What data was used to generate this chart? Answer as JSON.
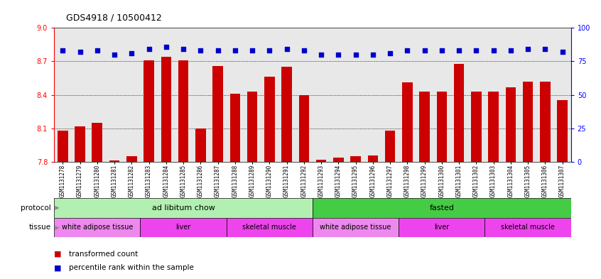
{
  "title": "GDS4918 / 10500412",
  "samples": [
    "GSM1131278",
    "GSM1131279",
    "GSM1131280",
    "GSM1131281",
    "GSM1131282",
    "GSM1131283",
    "GSM1131284",
    "GSM1131285",
    "GSM1131286",
    "GSM1131287",
    "GSM1131288",
    "GSM1131289",
    "GSM1131290",
    "GSM1131291",
    "GSM1131292",
    "GSM1131293",
    "GSM1131294",
    "GSM1131295",
    "GSM1131296",
    "GSM1131297",
    "GSM1131298",
    "GSM1131299",
    "GSM1131300",
    "GSM1131301",
    "GSM1131302",
    "GSM1131303",
    "GSM1131304",
    "GSM1131305",
    "GSM1131306",
    "GSM1131307"
  ],
  "bar_values": [
    8.08,
    8.12,
    8.15,
    7.81,
    7.85,
    8.71,
    8.74,
    8.71,
    8.1,
    8.66,
    8.41,
    8.43,
    8.56,
    8.65,
    8.4,
    7.82,
    7.84,
    7.85,
    7.86,
    8.08,
    8.51,
    8.43,
    8.43,
    8.68,
    8.43,
    8.43,
    8.47,
    8.52,
    8.52,
    8.35
  ],
  "percentile_values": [
    83,
    82,
    83,
    80,
    81,
    84,
    86,
    84,
    83,
    83,
    83,
    83,
    83,
    84,
    83,
    80,
    80,
    80,
    80,
    81,
    83,
    83,
    83,
    83,
    83,
    83,
    83,
    84,
    84,
    82
  ],
  "bar_color": "#cc0000",
  "dot_color": "#0000cc",
  "ylim_left": [
    7.8,
    9.0
  ],
  "ylim_right": [
    0,
    100
  ],
  "yticks_left": [
    7.8,
    8.1,
    8.4,
    8.7,
    9.0
  ],
  "yticks_right": [
    0,
    25,
    50,
    75,
    100
  ],
  "gridline_ticks": [
    8.1,
    8.4,
    8.7
  ],
  "plot_bg": "#e8e8e8",
  "fig_bg": "#ffffff",
  "protocol_groups": [
    {
      "label": "ad libitum chow",
      "start": 0,
      "end": 15,
      "color": "#b2f0b2"
    },
    {
      "label": "fasted",
      "start": 15,
      "end": 30,
      "color": "#44cc44"
    }
  ],
  "tissue_groups": [
    {
      "label": "white adipose tissue",
      "start": 0,
      "end": 5,
      "color": "#ee88ee"
    },
    {
      "label": "liver",
      "start": 5,
      "end": 10,
      "color": "#ee44ee"
    },
    {
      "label": "skeletal muscle",
      "start": 10,
      "end": 15,
      "color": "#ee44ee"
    },
    {
      "label": "white adipose tissue",
      "start": 15,
      "end": 20,
      "color": "#ee88ee"
    },
    {
      "label": "liver",
      "start": 20,
      "end": 25,
      "color": "#ee44ee"
    },
    {
      "label": "skeletal muscle",
      "start": 25,
      "end": 30,
      "color": "#ee44ee"
    }
  ],
  "legend_items": [
    {
      "label": "transformed count",
      "color": "#cc0000"
    },
    {
      "label": "percentile rank within the sample",
      "color": "#0000cc"
    }
  ]
}
